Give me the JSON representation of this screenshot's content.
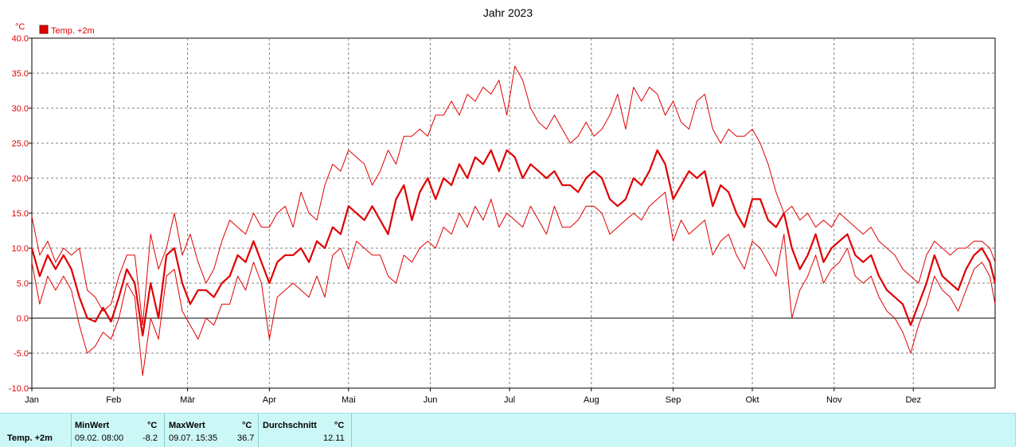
{
  "chart_data": {
    "type": "line",
    "title": "Jahr 2023",
    "ylabel": "°C",
    "ylim": [
      -10,
      40
    ],
    "yticks": [
      "-10.0",
      "-5.0",
      "0.0",
      "5.0",
      "10.0",
      "15.0",
      "20.0",
      "25.0",
      "30.0",
      "35.0",
      "40.0"
    ],
    "xlim_days": [
      0,
      365
    ],
    "xticks": [
      {
        "label": "Jan",
        "day": 0
      },
      {
        "label": "Feb",
        "day": 31
      },
      {
        "label": "Mär",
        "day": 59
      },
      {
        "label": "Apr",
        "day": 90
      },
      {
        "label": "Mai",
        "day": 120
      },
      {
        "label": "Jun",
        "day": 151
      },
      {
        "label": "Jul",
        "day": 181
      },
      {
        "label": "Aug",
        "day": 212
      },
      {
        "label": "Sep",
        "day": 243
      },
      {
        "label": "Okt",
        "day": 273
      },
      {
        "label": "Nov",
        "day": 304
      },
      {
        "label": "Dez",
        "day": 334
      }
    ],
    "legend": {
      "label": "Temp. +2m",
      "position": "top-left"
    },
    "grid": true,
    "colors": {
      "series": "#e00000",
      "axis_text": "#e00000",
      "grid": "#808080"
    },
    "series": [
      {
        "name": "max",
        "x": [
          0,
          3,
          6,
          9,
          12,
          15,
          18,
          21,
          24,
          27,
          30,
          33,
          36,
          39,
          42,
          45,
          48,
          51,
          54,
          57,
          60,
          63,
          66,
          69,
          72,
          75,
          78,
          81,
          84,
          87,
          90,
          93,
          96,
          99,
          102,
          105,
          108,
          111,
          114,
          117,
          120,
          123,
          126,
          129,
          132,
          135,
          138,
          141,
          144,
          147,
          150,
          153,
          156,
          159,
          162,
          165,
          168,
          171,
          174,
          177,
          180,
          183,
          186,
          189,
          192,
          195,
          198,
          201,
          204,
          207,
          210,
          213,
          216,
          219,
          222,
          225,
          228,
          231,
          234,
          237,
          240,
          243,
          246,
          249,
          252,
          255,
          258,
          261,
          264,
          267,
          270,
          273,
          276,
          279,
          282,
          285,
          288,
          291,
          294,
          297,
          300,
          303,
          306,
          309,
          312,
          315,
          318,
          321,
          324,
          327,
          330,
          333,
          336,
          339,
          342,
          345,
          348,
          351,
          354,
          357,
          360,
          363,
          365
        ],
        "y": [
          14.5,
          9,
          11,
          8,
          10,
          9,
          10,
          4,
          3,
          1,
          2,
          6,
          9,
          9,
          -1,
          12,
          7,
          10,
          15,
          9,
          12,
          8,
          5,
          7,
          11,
          14,
          13,
          12,
          15,
          13,
          13,
          15,
          16,
          13,
          18,
          15,
          14,
          19,
          22,
          21,
          24,
          23,
          22,
          19,
          21,
          24,
          22,
          26,
          26,
          27,
          26,
          29,
          29,
          31,
          29,
          32,
          31,
          33,
          32,
          34,
          29,
          36,
          34,
          30,
          28,
          27,
          29,
          27,
          25,
          26,
          28,
          26,
          27,
          29,
          32,
          27,
          33,
          31,
          33,
          32,
          29,
          31,
          28,
          27,
          31,
          32,
          27,
          25,
          27,
          26,
          26,
          27,
          25,
          22,
          18,
          15,
          16,
          14,
          15,
          13,
          14,
          13,
          15,
          14,
          13,
          12,
          13,
          11,
          10,
          9,
          7,
          6,
          5,
          9,
          11,
          10,
          9,
          10,
          10,
          11,
          11,
          10,
          8
        ]
      },
      {
        "name": "avg",
        "x": [
          0,
          3,
          6,
          9,
          12,
          15,
          18,
          21,
          24,
          27,
          30,
          33,
          36,
          39,
          42,
          45,
          48,
          51,
          54,
          57,
          60,
          63,
          66,
          69,
          72,
          75,
          78,
          81,
          84,
          87,
          90,
          93,
          96,
          99,
          102,
          105,
          108,
          111,
          114,
          117,
          120,
          123,
          126,
          129,
          132,
          135,
          138,
          141,
          144,
          147,
          150,
          153,
          156,
          159,
          162,
          165,
          168,
          171,
          174,
          177,
          180,
          183,
          186,
          189,
          192,
          195,
          198,
          201,
          204,
          207,
          210,
          213,
          216,
          219,
          222,
          225,
          228,
          231,
          234,
          237,
          240,
          243,
          246,
          249,
          252,
          255,
          258,
          261,
          264,
          267,
          270,
          273,
          276,
          279,
          282,
          285,
          288,
          291,
          294,
          297,
          300,
          303,
          306,
          309,
          312,
          315,
          318,
          321,
          324,
          327,
          330,
          333,
          336,
          339,
          342,
          345,
          348,
          351,
          354,
          357,
          360,
          363,
          365
        ],
        "y": [
          10,
          6,
          9,
          7,
          9,
          7,
          3,
          0,
          -0.5,
          1.5,
          -0.5,
          3,
          7,
          5,
          -2.5,
          5,
          0,
          9,
          10,
          5,
          2,
          4,
          4,
          3,
          5,
          6,
          9,
          8,
          11,
          8,
          5,
          8,
          9,
          9,
          10,
          8,
          11,
          10,
          13,
          12,
          16,
          15,
          14,
          16,
          14,
          12,
          17,
          19,
          14,
          18,
          20,
          17,
          20,
          19,
          22,
          20,
          23,
          22,
          24,
          21,
          24,
          23,
          20,
          22,
          21,
          20,
          21,
          19,
          19,
          18,
          20,
          21,
          20,
          17,
          16,
          17,
          20,
          19,
          21,
          24,
          22,
          17,
          19,
          21,
          20,
          21,
          16,
          19,
          18,
          15,
          13,
          17,
          17,
          14,
          13,
          15,
          10,
          7,
          9,
          12,
          8,
          10,
          11,
          12,
          9,
          8,
          9,
          6,
          4,
          3,
          2,
          -1,
          2,
          5,
          9,
          6,
          5,
          4,
          7,
          9,
          10,
          8,
          5
        ]
      },
      {
        "name": "min",
        "x": [
          0,
          3,
          6,
          9,
          12,
          15,
          18,
          21,
          24,
          27,
          30,
          33,
          36,
          39,
          42,
          45,
          48,
          51,
          54,
          57,
          60,
          63,
          66,
          69,
          72,
          75,
          78,
          81,
          84,
          87,
          90,
          93,
          96,
          99,
          102,
          105,
          108,
          111,
          114,
          117,
          120,
          123,
          126,
          129,
          132,
          135,
          138,
          141,
          144,
          147,
          150,
          153,
          156,
          159,
          162,
          165,
          168,
          171,
          174,
          177,
          180,
          183,
          186,
          189,
          192,
          195,
          198,
          201,
          204,
          207,
          210,
          213,
          216,
          219,
          222,
          225,
          228,
          231,
          234,
          237,
          240,
          243,
          246,
          249,
          252,
          255,
          258,
          261,
          264,
          267,
          270,
          273,
          276,
          279,
          282,
          285,
          288,
          291,
          294,
          297,
          300,
          303,
          306,
          309,
          312,
          315,
          318,
          321,
          324,
          327,
          330,
          333,
          336,
          339,
          342,
          345,
          348,
          351,
          354,
          357,
          360,
          363,
          365
        ],
        "y": [
          8,
          2,
          6,
          4,
          6,
          4,
          -1,
          -5,
          -4,
          -2,
          -3,
          0,
          5,
          3,
          -8.2,
          0,
          -3,
          6,
          7,
          1,
          -1,
          -3,
          0,
          -1,
          2,
          2,
          6,
          4,
          8,
          5,
          -3,
          3,
          4,
          5,
          4,
          3,
          6,
          3,
          9,
          10,
          7,
          11,
          10,
          9,
          9,
          6,
          5,
          9,
          8,
          10,
          11,
          10,
          13,
          12,
          15,
          13,
          16,
          14,
          17,
          13,
          15,
          14,
          13,
          16,
          14,
          12,
          16,
          13,
          13,
          14,
          16,
          16,
          15,
          12,
          13,
          14,
          15,
          14,
          16,
          17,
          18,
          11,
          14,
          12,
          13,
          14,
          9,
          11,
          12,
          9,
          7,
          11,
          10,
          8,
          6,
          12,
          0,
          4,
          6,
          9,
          5,
          7,
          8,
          10,
          6,
          5,
          6,
          3,
          1,
          0,
          -2,
          -5,
          -1,
          2,
          6,
          4,
          3,
          1,
          4,
          7,
          8,
          6,
          2
        ]
      }
    ]
  },
  "stats": {
    "row_label": "Temp. +2m",
    "min": {
      "header": "MinWert",
      "unit": "°C",
      "datetime": "09.02.  08:00",
      "value": "-8.2"
    },
    "max": {
      "header": "MaxWert",
      "unit": "°C",
      "datetime": "09.07.  15:35",
      "value": "36.7"
    },
    "avg": {
      "header": "Durchschnitt",
      "unit": "°C",
      "value": "12.11"
    }
  }
}
